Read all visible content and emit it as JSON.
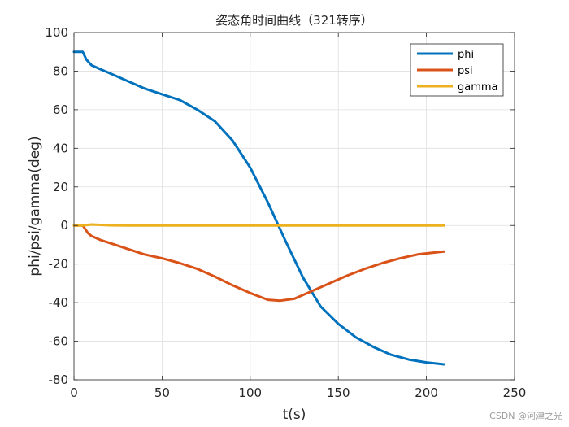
{
  "chart_data": {
    "type": "line",
    "title": "姿态角时间曲线（321转序）",
    "xlabel": "t(s)",
    "ylabel": "phi/psi/gamma(deg)",
    "xlim": [
      0,
      250
    ],
    "ylim": [
      -80,
      100
    ],
    "xticks": [
      0,
      50,
      100,
      150,
      200,
      250
    ],
    "yticks": [
      -80,
      -60,
      -40,
      -20,
      0,
      20,
      40,
      60,
      80,
      100
    ],
    "grid": true,
    "legend_position": "top-right",
    "series": [
      {
        "name": "phi",
        "color": "#0072BD",
        "points": [
          [
            0,
            90
          ],
          [
            5,
            90
          ],
          [
            7,
            86
          ],
          [
            10,
            83
          ],
          [
            15,
            81
          ],
          [
            20,
            79
          ],
          [
            30,
            75
          ],
          [
            40,
            71
          ],
          [
            50,
            68
          ],
          [
            60,
            65
          ],
          [
            70,
            60
          ],
          [
            80,
            54
          ],
          [
            90,
            44
          ],
          [
            100,
            30
          ],
          [
            110,
            12
          ],
          [
            120,
            -8
          ],
          [
            130,
            -27
          ],
          [
            140,
            -42
          ],
          [
            150,
            -51
          ],
          [
            160,
            -58
          ],
          [
            170,
            -63
          ],
          [
            180,
            -67
          ],
          [
            190,
            -69.5
          ],
          [
            200,
            -71
          ],
          [
            210,
            -72
          ]
        ]
      },
      {
        "name": "psi",
        "color": "#D95319",
        "points": [
          [
            0,
            0
          ],
          [
            5,
            0
          ],
          [
            8,
            -4
          ],
          [
            10,
            -5.5
          ],
          [
            15,
            -7.5
          ],
          [
            20,
            -9
          ],
          [
            30,
            -12
          ],
          [
            40,
            -15
          ],
          [
            50,
            -17
          ],
          [
            60,
            -19.5
          ],
          [
            70,
            -22.5
          ],
          [
            80,
            -26.5
          ],
          [
            90,
            -31
          ],
          [
            100,
            -35
          ],
          [
            110,
            -38.5
          ],
          [
            117,
            -39
          ],
          [
            125,
            -38
          ],
          [
            135,
            -34
          ],
          [
            145,
            -30
          ],
          [
            155,
            -26
          ],
          [
            165,
            -22.5
          ],
          [
            175,
            -19.5
          ],
          [
            185,
            -17
          ],
          [
            195,
            -15
          ],
          [
            205,
            -14
          ],
          [
            210,
            -13.5
          ]
        ]
      },
      {
        "name": "gamma",
        "color": "#EDB120",
        "points": [
          [
            0,
            0
          ],
          [
            5,
            0
          ],
          [
            10,
            0.5
          ],
          [
            15,
            0.3
          ],
          [
            20,
            0.1
          ],
          [
            30,
            0
          ],
          [
            100,
            0
          ],
          [
            210,
            0
          ]
        ]
      }
    ]
  },
  "watermark": "CSDN @河津之光"
}
